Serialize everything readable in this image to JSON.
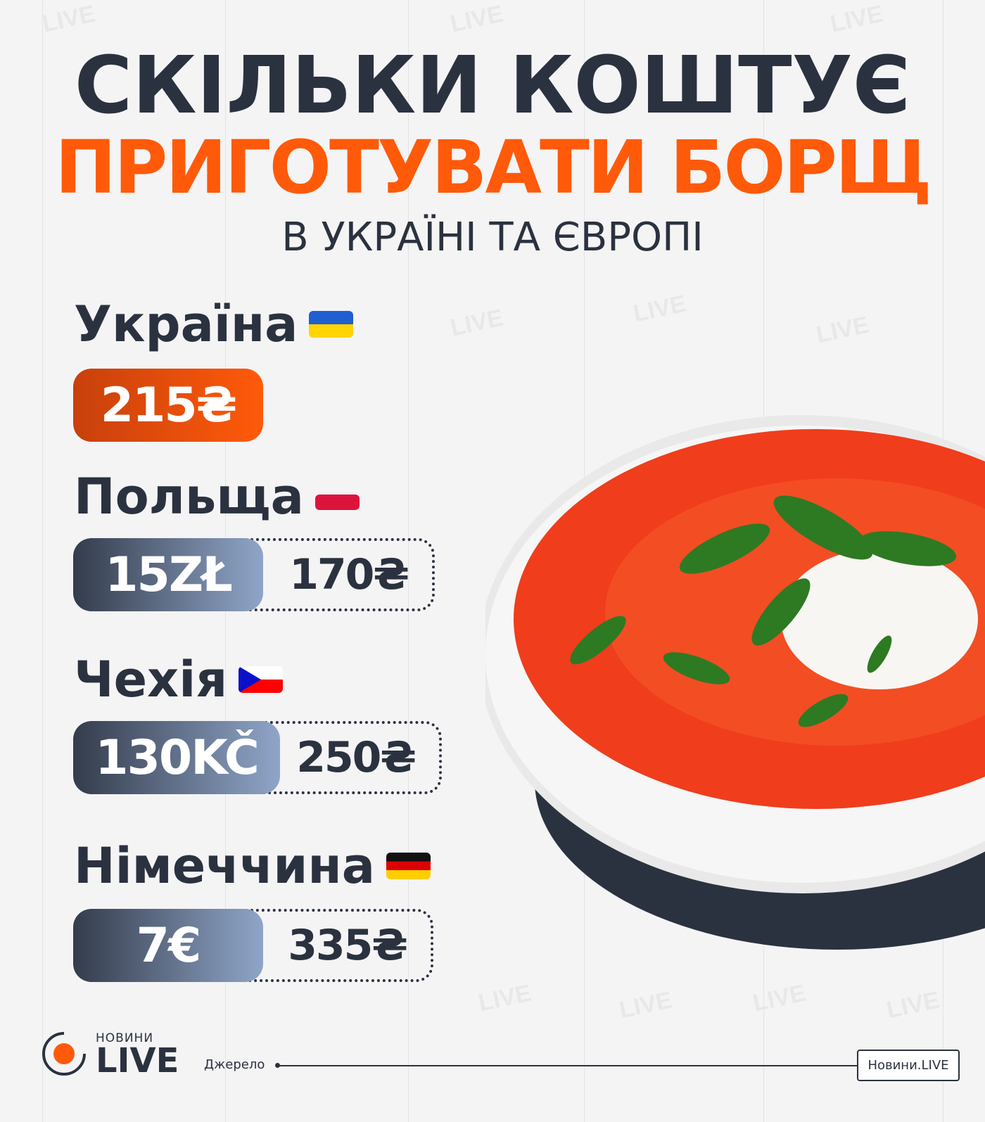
{
  "title": {
    "line1": "СКІЛЬКИ КОШТУЄ",
    "line2": "ПРИГОТУВАТИ БОРЩ",
    "subtitle": "В УКРАЇНІ ТА ЄВРОПІ"
  },
  "colors": {
    "accent": "#ff5a0a",
    "dark": "#2b323f"
  },
  "countries": [
    {
      "name": "Україна",
      "flag": "ukraine-flag",
      "local_price": "215₴"
    },
    {
      "name": "Польща",
      "flag": "poland-flag",
      "local_price": "15ZŁ",
      "uah_price": "170₴"
    },
    {
      "name": "Чехія",
      "flag": "czech-flag",
      "local_price": "130KČ",
      "uah_price": "250₴"
    },
    {
      "name": "Німеччина",
      "flag": "germany-flag",
      "local_price": "7€",
      "uah_price": "335₴"
    }
  ],
  "footer": {
    "logo_top": "НОВИНИ",
    "logo_main": "LIVE",
    "source_label": "Джерело",
    "source_value": "Новини.LIVE"
  },
  "watermark": "LIVE"
}
